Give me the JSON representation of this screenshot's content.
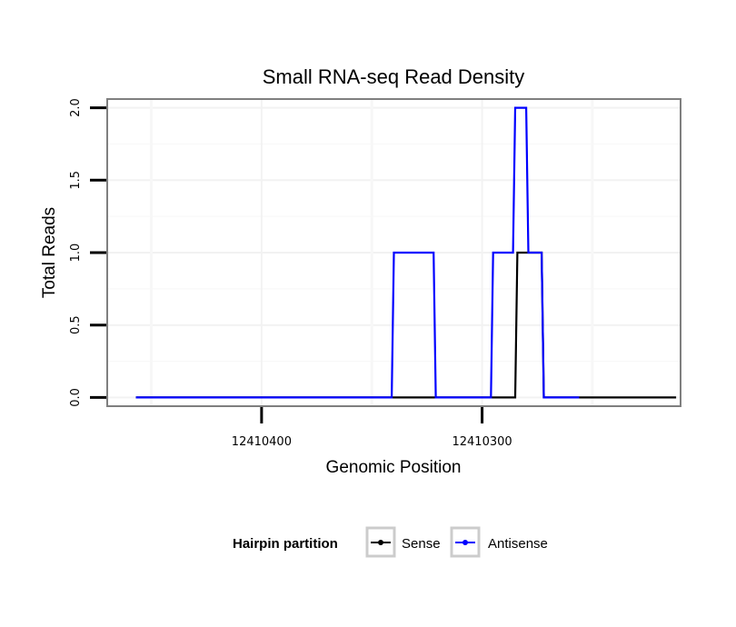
{
  "chart_data": {
    "type": "line",
    "title": "Small RNA-seq Read Density",
    "xlabel": "Genomic Position",
    "ylabel": "Total Reads",
    "x_reversed": true,
    "xlim": [
      12410470,
      12410210
    ],
    "ylim": [
      -0.06,
      2.06
    ],
    "x_ticks": [
      12410400,
      12410300
    ],
    "x_tick_labels": [
      "12410400",
      "12410300"
    ],
    "y_ticks": [
      0.0,
      0.5,
      1.0,
      1.5,
      2.0
    ],
    "y_tick_labels": [
      "0.0",
      "0.5",
      "1.0",
      "1.5",
      "2.0"
    ],
    "grid": true,
    "legend": {
      "title": "Hairpin partition",
      "position": "bottom",
      "entries": [
        "Sense",
        "Antisense"
      ]
    },
    "series": [
      {
        "name": "Sense",
        "color": "#000000",
        "x": [
          12410457,
          12410285,
          12410284,
          12410273,
          12410272,
          12410212
        ],
        "y": [
          0,
          0,
          1,
          1,
          0,
          0
        ]
      },
      {
        "name": "Antisense",
        "color": "#0000ff",
        "x": [
          12410457,
          12410341,
          12410340,
          12410322,
          12410321,
          12410296,
          12410295,
          12410286,
          12410285,
          12410280,
          12410279,
          12410273,
          12410272,
          12410264,
          12410263,
          12410256
        ],
        "y": [
          0,
          0,
          1,
          1,
          0,
          0,
          1,
          1,
          2,
          2,
          1,
          1,
          0,
          0,
          0,
          0
        ]
      }
    ]
  }
}
